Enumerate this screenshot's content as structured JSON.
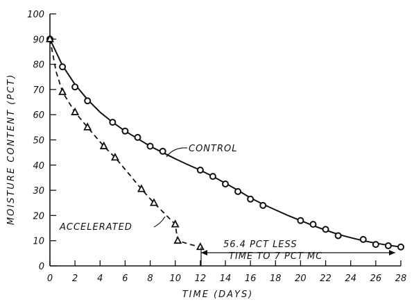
{
  "chart_data": {
    "type": "line",
    "xlabel": "TIME (DAYS)",
    "ylabel": "MOISTURE CONTENT (PCT)",
    "xlim": [
      0,
      28
    ],
    "ylim": [
      0,
      100
    ],
    "x_ticks": [
      0,
      2,
      4,
      6,
      8,
      10,
      12,
      14,
      16,
      18,
      20,
      22,
      24,
      26,
      28
    ],
    "y_ticks": [
      0,
      10,
      20,
      30,
      40,
      50,
      60,
      70,
      80,
      90,
      100
    ],
    "x_tick_labels": [
      "0",
      "2",
      "4",
      "6",
      "8",
      "10",
      "12",
      "14",
      "16",
      "18",
      "20",
      "22",
      "24",
      "26",
      "28"
    ],
    "y_tick_labels": [
      "0",
      "10",
      "20",
      "30",
      "40",
      "50",
      "60",
      "70",
      "80",
      "90",
      "100"
    ],
    "grid": false,
    "series": [
      {
        "name": "CONTROL",
        "style": "solid",
        "marker": "circle",
        "points": [
          [
            0,
            90
          ],
          [
            1,
            79
          ],
          [
            2,
            71
          ],
          [
            3,
            65.5
          ],
          [
            5,
            57
          ],
          [
            6,
            53.5
          ],
          [
            7,
            51
          ],
          [
            8,
            47.5
          ],
          [
            9,
            45.5
          ],
          [
            12,
            38
          ],
          [
            13,
            35.5
          ],
          [
            14,
            32.5
          ],
          [
            15,
            29.5
          ],
          [
            16,
            26.5
          ],
          [
            17,
            24
          ],
          [
            20,
            18
          ],
          [
            21,
            16.5
          ],
          [
            22,
            14.5
          ],
          [
            23,
            12
          ],
          [
            25,
            10.5
          ],
          [
            26,
            8.5
          ],
          [
            27,
            8
          ],
          [
            28,
            7.5
          ]
        ],
        "curve": [
          [
            0,
            90
          ],
          [
            1,
            79.5
          ],
          [
            2,
            72
          ],
          [
            3,
            66
          ],
          [
            4,
            61
          ],
          [
            5,
            57
          ],
          [
            6,
            53.5
          ],
          [
            7,
            50.5
          ],
          [
            8,
            47.5
          ],
          [
            9,
            45
          ],
          [
            10,
            42.5
          ],
          [
            11,
            40.2
          ],
          [
            12,
            38
          ],
          [
            13,
            35.5
          ],
          [
            14,
            32.8
          ],
          [
            15,
            30
          ],
          [
            16,
            27
          ],
          [
            17,
            24.5
          ],
          [
            18,
            22.2
          ],
          [
            19,
            20
          ],
          [
            20,
            18
          ],
          [
            21,
            16
          ],
          [
            22,
            14.2
          ],
          [
            23,
            12.5
          ],
          [
            24,
            11.2
          ],
          [
            25,
            10
          ],
          [
            26,
            9
          ],
          [
            27,
            8.2
          ],
          [
            28,
            7.5
          ]
        ]
      },
      {
        "name": "ACCELERATED",
        "style": "dashed",
        "marker": "triangle",
        "points": [
          [
            0,
            90
          ],
          [
            1,
            69
          ],
          [
            2,
            61
          ],
          [
            3,
            55
          ],
          [
            4.3,
            47.5
          ],
          [
            5.2,
            43
          ],
          [
            7.3,
            30.5
          ],
          [
            8.3,
            25
          ],
          [
            10,
            16.5
          ],
          [
            10.2,
            10
          ],
          [
            12,
            7.5
          ]
        ],
        "curve": [
          [
            0,
            90
          ],
          [
            0.5,
            77
          ],
          [
            1,
            69
          ],
          [
            2,
            61
          ],
          [
            3,
            55
          ],
          [
            4.3,
            47.5
          ],
          [
            5.2,
            43
          ],
          [
            6.3,
            36.5
          ],
          [
            7.3,
            30.5
          ],
          [
            8.3,
            25
          ],
          [
            9.2,
            20.5
          ],
          [
            10,
            16.5
          ],
          [
            10.2,
            10
          ],
          [
            11.2,
            8.5
          ],
          [
            12,
            7.5
          ]
        ]
      }
    ],
    "annotations": [
      {
        "text": "CONTROL",
        "at": [
          14,
          40
        ]
      },
      {
        "text": "ACCELERATED",
        "at": [
          6,
          15
        ]
      },
      {
        "text": "56.4 PCT LESS",
        "at": [
          18,
          10
        ]
      },
      {
        "text": "TIME TO 7 PCT MC",
        "at": [
          18,
          5
        ]
      }
    ]
  },
  "labels": {
    "control": "CONTROL",
    "accelerated": "ACCELERATED",
    "note1": "56.4 PCT LESS",
    "note2": "TIME TO 7 PCT MC",
    "xlabel": "TIME (DAYS)",
    "ylabel": "MOISTURE CONTENT (PCT)"
  }
}
